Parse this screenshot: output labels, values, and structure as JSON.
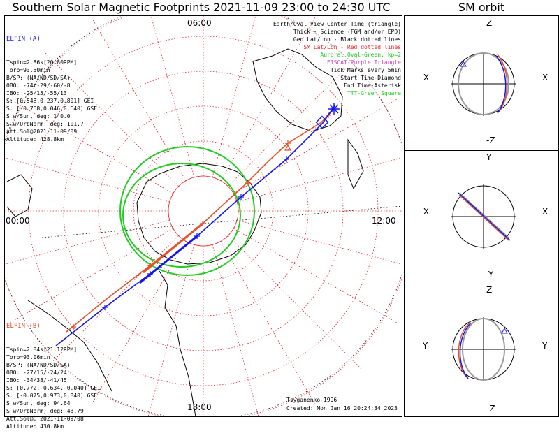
{
  "title": "Southern Solar Magnetic Footprints 2021-11-09 23:00 to 24:30 UTC",
  "orbit_title": "SM orbit",
  "mlt_labels": {
    "top": "06:00",
    "left": "00:00",
    "right": "12:00",
    "bottom": "18:00"
  },
  "legend": [
    {
      "text": "Earth/Oval View Center Time (triangle)",
      "color": "#000000"
    },
    {
      "text": "Thick - Science (FGM and/or EPD)",
      "color": "#000000"
    },
    {
      "text": "Geo Lat/Lon - Black dotted lines",
      "color": "#000000"
    },
    {
      "text": "SM Lat/Lon - Red dotted lines",
      "color": "#e8262a"
    },
    {
      "text": "Auroral Oval-Green, kp=2",
      "color": "#22cc22"
    },
    {
      "text": "EISCAT-Purple Triangle",
      "color": "#cc44cc"
    },
    {
      "text": "Tick Marks every 5min",
      "color": "#000000"
    },
    {
      "text": "Start Time-Diamond",
      "color": "#000000"
    },
    {
      "text": "End Time-Asterisk",
      "color": "#000000"
    },
    {
      "text": "TTT-Green Square",
      "color": "#22cc22"
    }
  ],
  "elfin_a": {
    "name": "ELFIN (A)",
    "color": "#1515ee",
    "lines": [
      "Tspin=2.86s[20.80RPM]",
      "Torb=93.50min",
      "B/SP: (NA/ND/SD/SA)",
      "OBO: -74/-29/-60/-8",
      "IBO: -25/15/-55/13",
      "S: [0.548,0.237,0.801] GEI",
      "S: [-0.768,0.046,0.640] GSE",
      "S w/Sun, deg: 140.0",
      "S w/OrbNorm, deg: 101.7",
      "Att.Sol@2021-11-09/09",
      "Altitude: 428.8km"
    ]
  },
  "elfin_b": {
    "name": "ELFIN (B)",
    "color": "#e8502a",
    "lines": [
      "Tspin=2.84s[21.12RPM]",
      "Torb=93.06min",
      "B/SP: (NA/ND/SD/SA)",
      "OBO: -27/15/-24/24",
      "IBO: -34/38/-41/45",
      "S: [0.772,-0.634,-0.040] GEI",
      "S: [-0.075,0.973,0.840] GSE",
      "S w/Sun, deg: 94.64",
      "S w/OrbNorm, deg: 43.79",
      "Att.Sol@: 2021-11-09/08",
      "Altitude: 430.8km"
    ]
  },
  "footer": {
    "model": "Tsyganenko-1996",
    "created": "Created: Mon Jan 16 20:24:34 2023"
  },
  "orbit_panels": [
    {
      "top": "Z",
      "bottom": "-Z",
      "left": "-X",
      "right": "X"
    },
    {
      "top": "Y",
      "bottom": "-Y",
      "left": "-X",
      "right": "X"
    },
    {
      "top": "Z",
      "bottom": "-Z",
      "left": "-Y",
      "right": "Y"
    }
  ],
  "colors": {
    "elfin_a": "#1515ee",
    "elfin_b": "#e8502a",
    "sm_grid": "#e8262a",
    "auroral_oval": "#22cc22",
    "geo_grid": "#000000",
    "orbit_gray": "#999999"
  },
  "chart_data": {
    "type": "scatter",
    "projection": "polar (southern hemisphere, magnetic local time)",
    "time_range": "2021-11-09 23:00 to 24:30 UTC",
    "mlt_ticks": [
      "00:00",
      "06:00",
      "12:00",
      "18:00"
    ],
    "series": [
      {
        "name": "ELFIN (A)",
        "marks": "tick every 5 min, start diamond, end asterisk"
      },
      {
        "name": "ELFIN (B)",
        "marks": "tick every 5 min, start diamond, end asterisk"
      }
    ],
    "auroral_oval_kp": 2,
    "model": "Tsyganenko-1996"
  }
}
